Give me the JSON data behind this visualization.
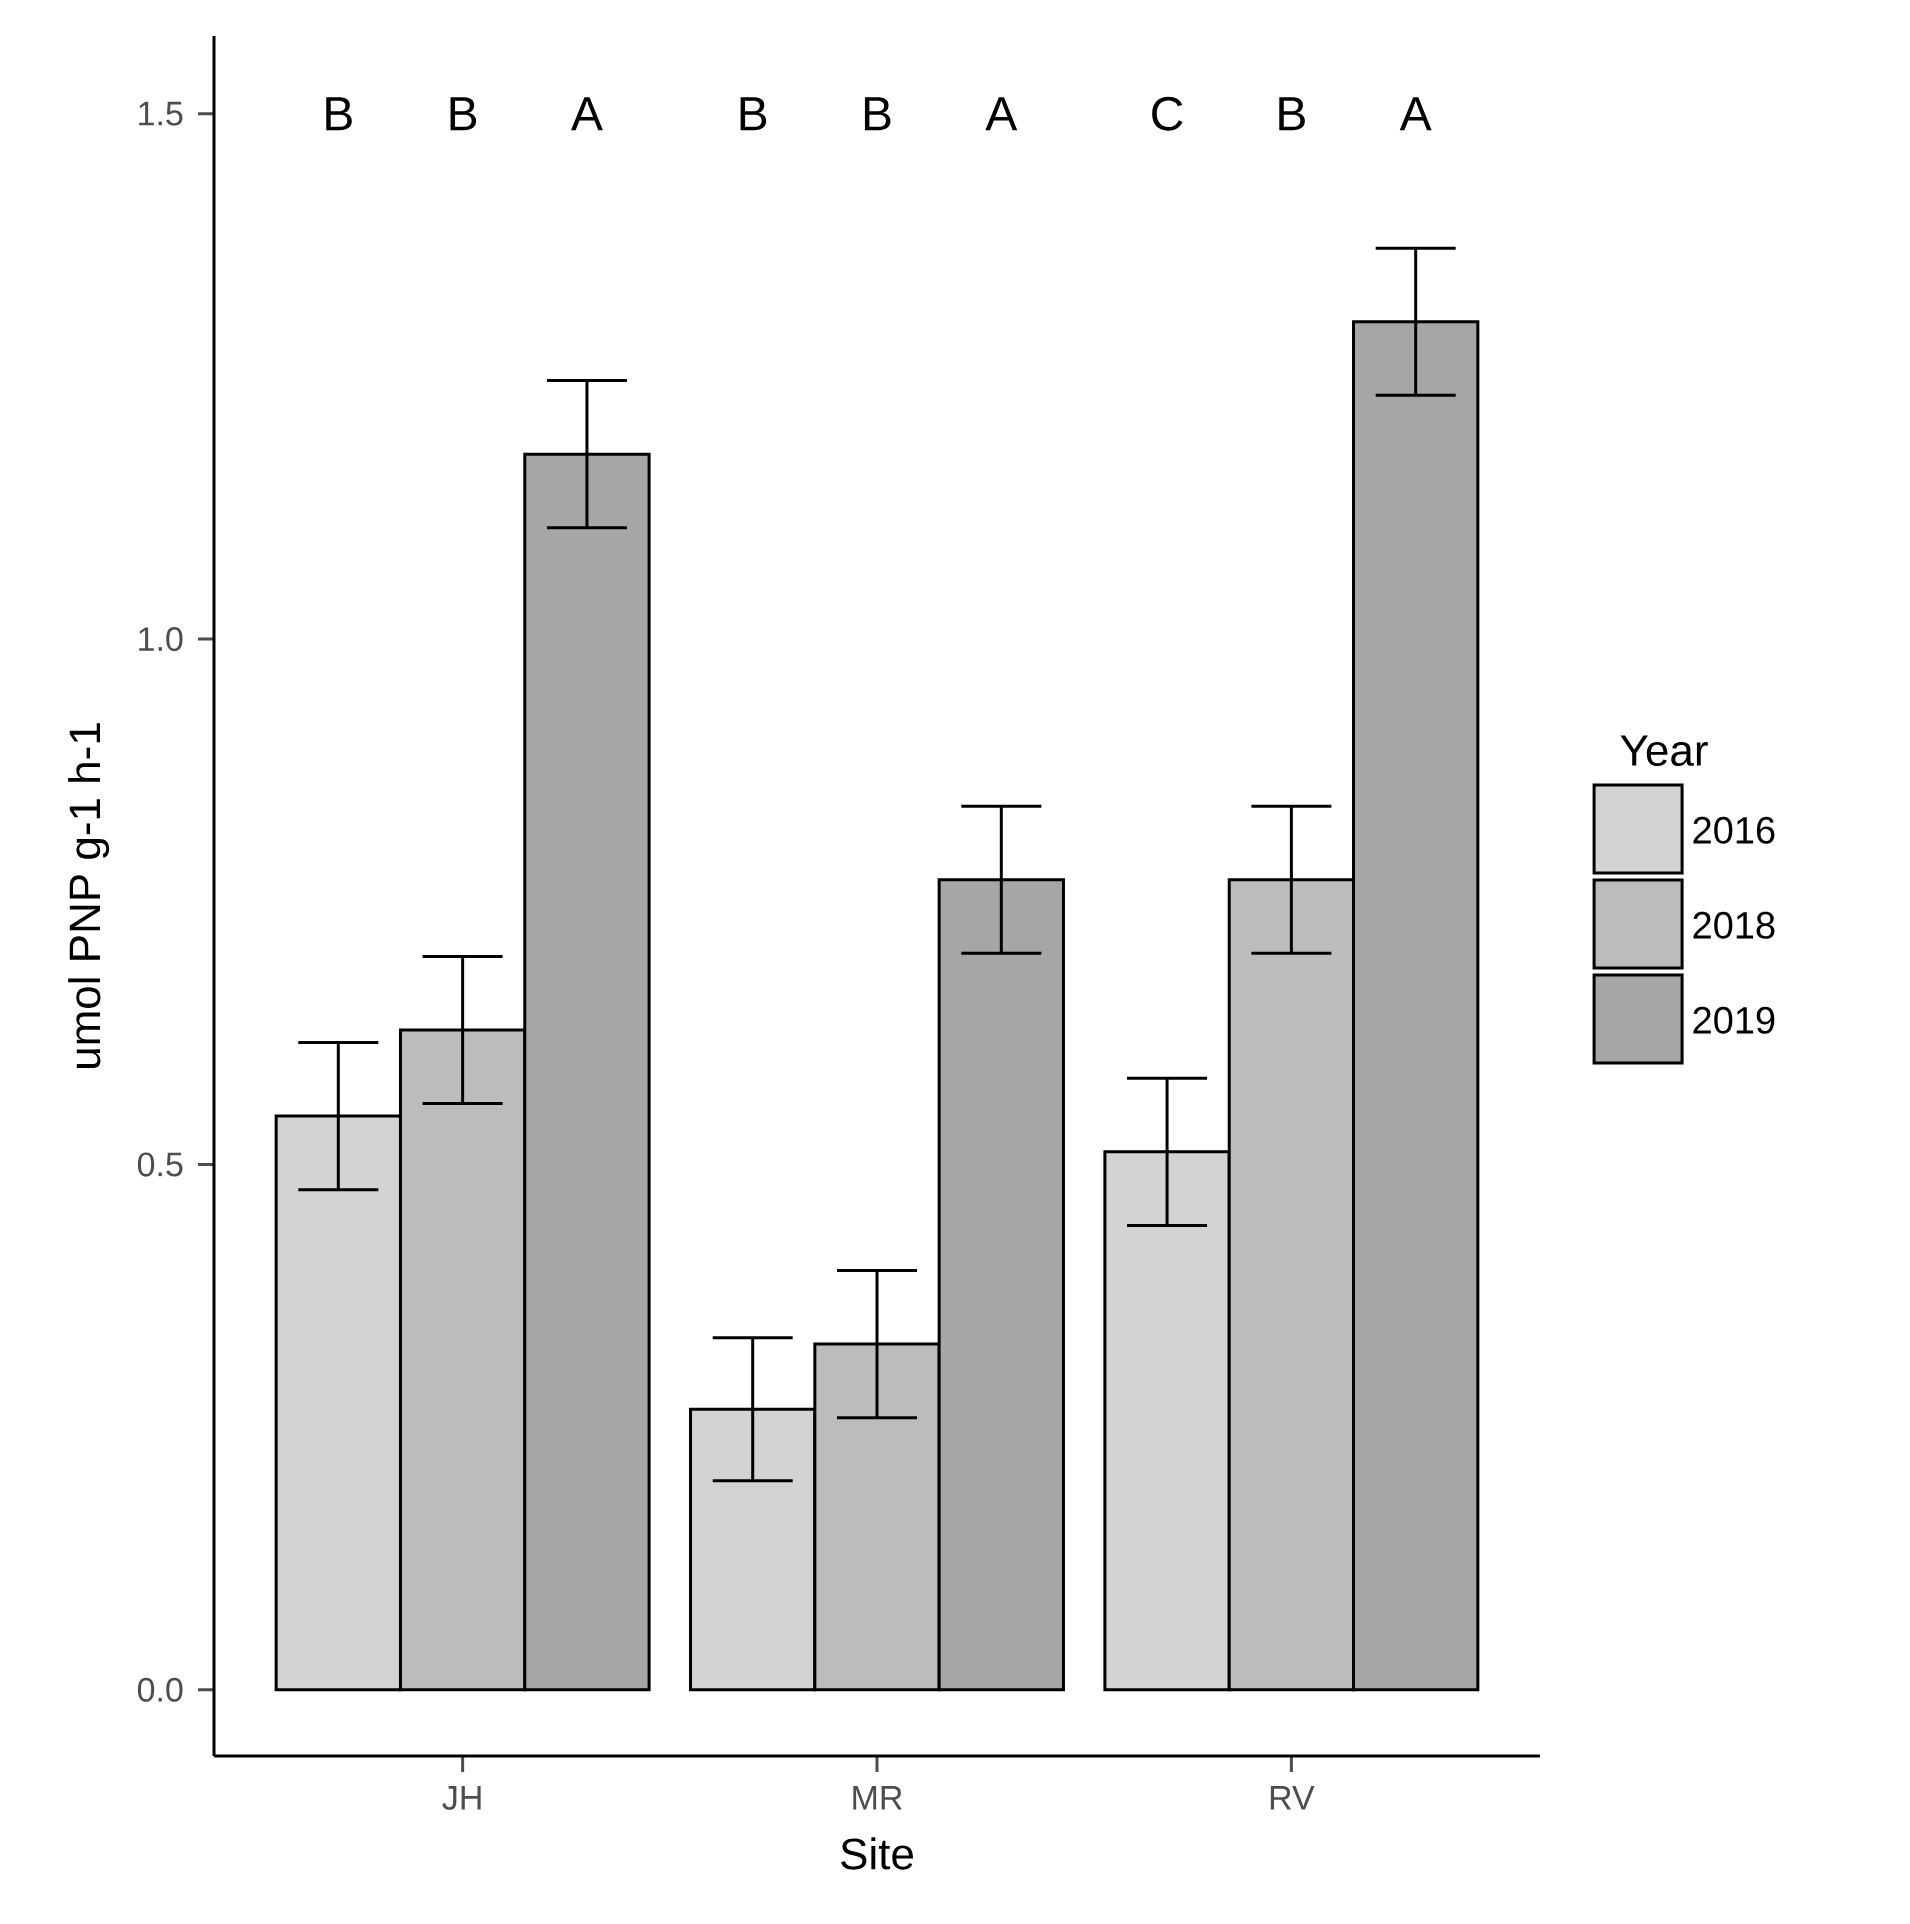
{
  "chart_data": {
    "type": "bar",
    "xlabel": "Site",
    "ylabel": "umol PNP g-1 h-1",
    "legend_title": "Year",
    "legend": "right",
    "grid": false,
    "categories": [
      "JH",
      "MR",
      "RV"
    ],
    "series": [
      {
        "name": "2016",
        "color": "#d3d3d3",
        "values": [
          0.546,
          0.267,
          0.512
        ],
        "errors": [
          0.07,
          0.068,
          0.07
        ]
      },
      {
        "name": "2018",
        "color": "#bcbcbc",
        "values": [
          0.628,
          0.329,
          0.771
        ],
        "errors": [
          0.07,
          0.07,
          0.07
        ]
      },
      {
        "name": "2019",
        "color": "#a6a6a6",
        "values": [
          1.176,
          0.771,
          1.302
        ],
        "errors": [
          0.07,
          0.07,
          0.07
        ]
      }
    ],
    "ylim": [
      -0.063,
      1.574
    ],
    "yticks": [
      {
        "value": 0,
        "label": "0.0"
      },
      {
        "value": 0.5,
        "label": "0.5"
      },
      {
        "value": 1,
        "label": "1.0"
      },
      {
        "value": 1.5,
        "label": "1.5"
      }
    ],
    "annotations": [
      "B",
      "B",
      "A",
      "B",
      "B",
      "A",
      "C",
      "B",
      "A"
    ]
  }
}
